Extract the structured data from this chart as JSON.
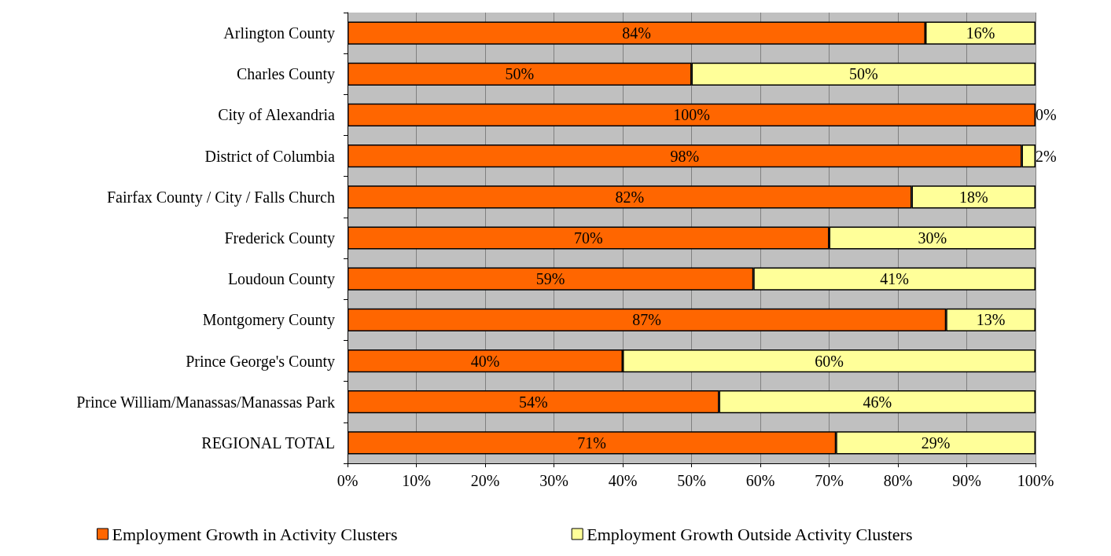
{
  "chart_data": {
    "type": "bar",
    "orientation": "horizontal",
    "stacked": true,
    "categories": [
      "Arlington County",
      "Charles County",
      "City of Alexandria",
      "District of Columbia",
      "Fairfax County / City / Falls Church",
      "Frederick County",
      "Loudoun County",
      "Montgomery County",
      "Prince George's County",
      "Prince William/Manassas/Manassas Park",
      "REGIONAL TOTAL"
    ],
    "series": [
      {
        "name": "Employment Growth in Activity Clusters",
        "color": "#ff6600",
        "values": [
          84,
          50,
          100,
          98,
          82,
          70,
          59,
          87,
          40,
          54,
          71
        ],
        "value_labels": [
          "84%",
          "50%",
          "100%",
          "98%",
          "82%",
          "70%",
          "59%",
          "87%",
          "40%",
          "54%",
          "71%"
        ]
      },
      {
        "name": "Employment Growth Outside Activity Clusters",
        "color": "#ffff99",
        "values": [
          16,
          50,
          0,
          2,
          18,
          30,
          41,
          13,
          60,
          46,
          29
        ],
        "value_labels": [
          "16%",
          "50%",
          "0%",
          "2%",
          "18%",
          "30%",
          "41%",
          "13%",
          "60%",
          "46%",
          "29%"
        ]
      }
    ],
    "xlim": [
      0,
      100
    ],
    "xticks": [
      {
        "value": 0,
        "label": "0%"
      },
      {
        "value": 10,
        "label": "10%"
      },
      {
        "value": 20,
        "label": "20%"
      },
      {
        "value": 30,
        "label": "30%"
      },
      {
        "value": 40,
        "label": "40%"
      },
      {
        "value": 50,
        "label": "50%"
      },
      {
        "value": 60,
        "label": "60%"
      },
      {
        "value": 70,
        "label": "70%"
      },
      {
        "value": 80,
        "label": "80%"
      },
      {
        "value": 90,
        "label": "90%"
      },
      {
        "value": 100,
        "label": "100%"
      }
    ],
    "grid": "x",
    "legend": "bottom"
  }
}
